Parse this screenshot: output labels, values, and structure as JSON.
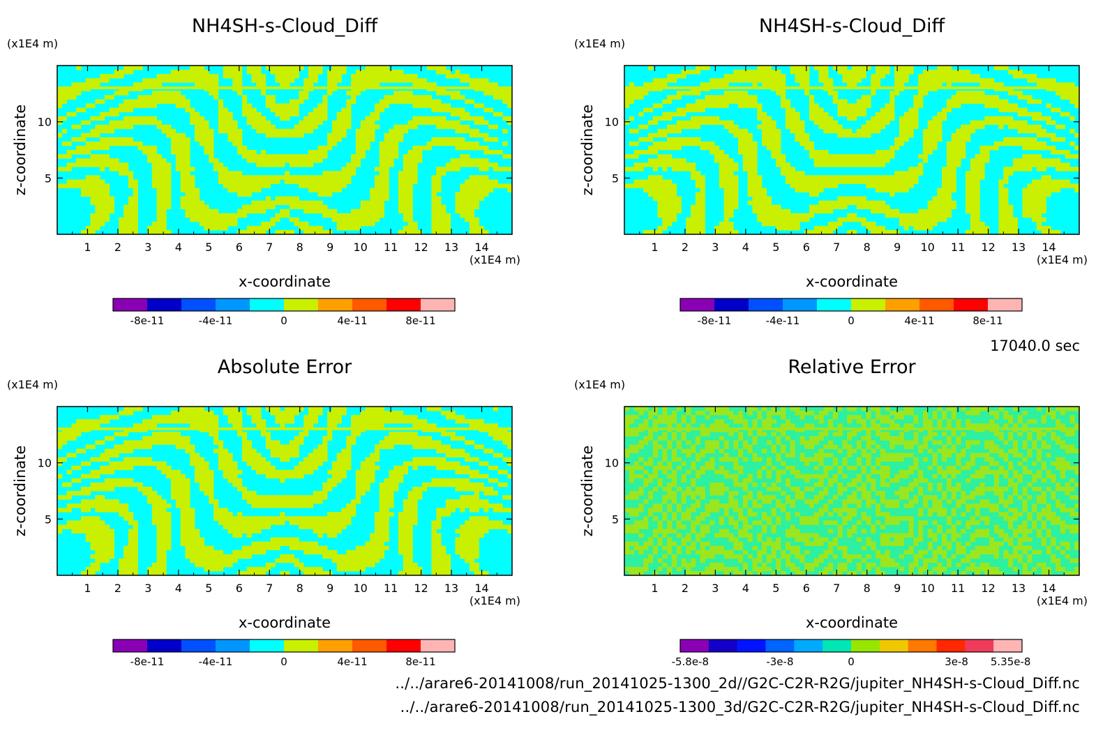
{
  "timestamp": "17040.0 sec",
  "footer_lines": [
    "../../arare6-20141008/run_20141025-1300_2d//G2C-C2R-R2G/jupiter_NH4SH-s-Cloud_Diff.nc",
    "../../arare6-20141008/run_20141025-1300_3d/G2C-C2R-R2G/jupiter_NH4SH-s-Cloud_Diff.nc"
  ],
  "chart_data": [
    {
      "type": "heatmap",
      "title": "NH4SH-s-Cloud_Diff",
      "xlabel": "x-coordinate",
      "ylabel": "z-coordinate",
      "x_unit": "(x1E4 m)",
      "y_unit": "(x1E4 m)",
      "x_ticks": [
        "1",
        "2",
        "3",
        "4",
        "5",
        "6",
        "7",
        "8",
        "9",
        "10",
        "11",
        "12",
        "13",
        "14"
      ],
      "y_ticks": [
        "5",
        "10"
      ],
      "xlim": [
        0,
        15
      ],
      "ylim": [
        0,
        15
      ],
      "pattern": "dominant",
      "fill_colors": [
        "#00ffff",
        "#c8f000"
      ],
      "colorbar": {
        "colors": [
          "#8a00b4",
          "#0000c8",
          "#0050ff",
          "#0096ff",
          "#00ffff",
          "#c8f000",
          "#ffa000",
          "#ff5a00",
          "#ff0000",
          "#ffb4b4"
        ],
        "tick_labels": [
          "-8e-11",
          "-4e-11",
          "0",
          "4e-11",
          "8e-11"
        ]
      }
    },
    {
      "type": "heatmap",
      "title": "NH4SH-s-Cloud_Diff",
      "xlabel": "x-coordinate",
      "ylabel": "z-coordinate",
      "x_unit": "(x1E4 m)",
      "y_unit": "(x1E4 m)",
      "x_ticks": [
        "1",
        "2",
        "3",
        "4",
        "5",
        "6",
        "7",
        "8",
        "9",
        "10",
        "11",
        "12",
        "13",
        "14"
      ],
      "y_ticks": [
        "5",
        "10"
      ],
      "xlim": [
        0,
        15
      ],
      "ylim": [
        0,
        15
      ],
      "pattern": "dominant",
      "fill_colors": [
        "#00ffff",
        "#c8f000"
      ],
      "colorbar": {
        "colors": [
          "#8a00b4",
          "#0000c8",
          "#0050ff",
          "#0096ff",
          "#00ffff",
          "#c8f000",
          "#ffa000",
          "#ff5a00",
          "#ff0000",
          "#ffb4b4"
        ],
        "tick_labels": [
          "-8e-11",
          "-4e-11",
          "0",
          "4e-11",
          "8e-11"
        ]
      }
    },
    {
      "type": "heatmap",
      "title": "Absolute Error",
      "xlabel": "x-coordinate",
      "ylabel": "z-coordinate",
      "x_unit": "(x1E4 m)",
      "y_unit": "(x1E4 m)",
      "x_ticks": [
        "1",
        "2",
        "3",
        "4",
        "5",
        "6",
        "7",
        "8",
        "9",
        "10",
        "11",
        "12",
        "13",
        "14"
      ],
      "y_ticks": [
        "5",
        "10"
      ],
      "xlim": [
        0,
        15
      ],
      "ylim": [
        0,
        15
      ],
      "pattern": "dominant",
      "fill_colors": [
        "#00ffff",
        "#c8f000"
      ],
      "colorbar": {
        "colors": [
          "#8a00b4",
          "#0000c8",
          "#0050ff",
          "#0096ff",
          "#00ffff",
          "#c8f000",
          "#ffa000",
          "#ff5a00",
          "#ff0000",
          "#ffb4b4"
        ],
        "tick_labels": [
          "-8e-11",
          "-4e-11",
          "0",
          "4e-11",
          "8e-11"
        ]
      }
    },
    {
      "type": "heatmap",
      "title": "Relative Error",
      "xlabel": "x-coordinate",
      "ylabel": "z-coordinate",
      "x_unit": "(x1E4 m)",
      "y_unit": "(x1E4 m)",
      "x_ticks": [
        "1",
        "2",
        "3",
        "4",
        "5",
        "6",
        "7",
        "8",
        "9",
        "10",
        "11",
        "12",
        "13",
        "14"
      ],
      "y_ticks": [
        "5",
        "10"
      ],
      "xlim": [
        0,
        15
      ],
      "ylim": [
        0,
        15
      ],
      "pattern": "noise",
      "fill_colors": [
        "#2df0a0",
        "#9be61e"
      ],
      "colorbar": {
        "colors": [
          "#8a00b4",
          "#1400c8",
          "#0014ff",
          "#0064ff",
          "#00aaff",
          "#00e6b4",
          "#96e600",
          "#f0c800",
          "#ff7800",
          "#ff2800",
          "#f03c5a",
          "#ffb4b4"
        ],
        "tick_labels": [
          "-5.8e-8",
          "-3e-8",
          "0",
          "3e-8",
          "5.35e-8"
        ]
      }
    }
  ]
}
